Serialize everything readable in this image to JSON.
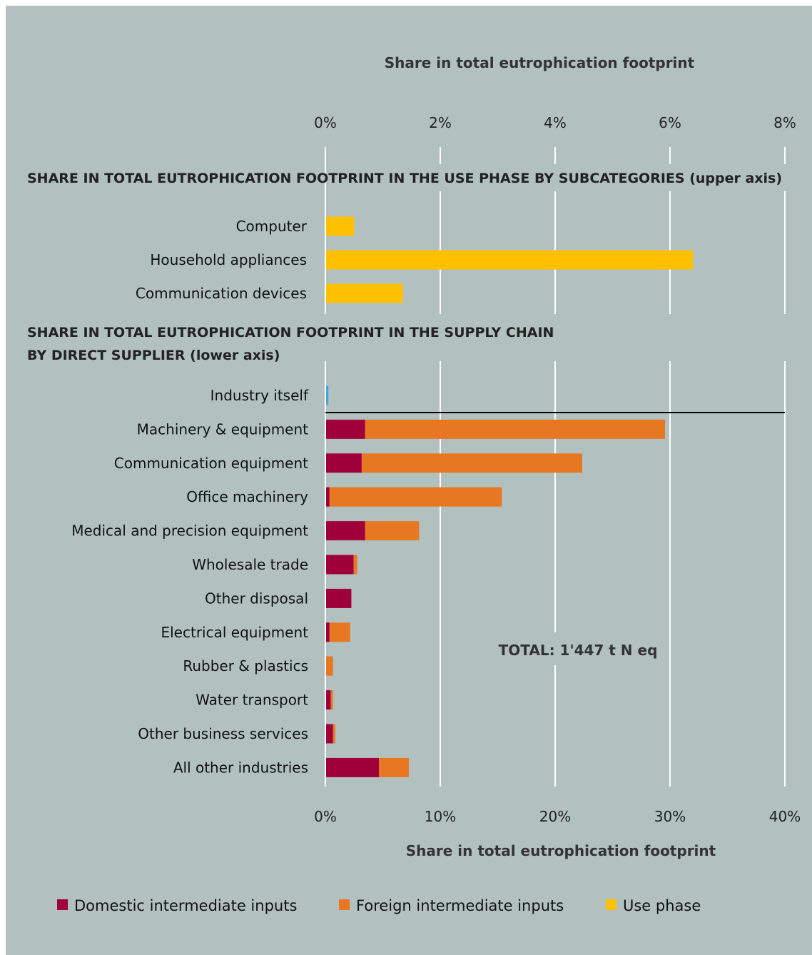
{
  "chart_data": [
    {
      "type": "bar",
      "orientation": "horizontal",
      "section_title": "SHARE IN TOTAL EUTROPHICATION FOOTPRINT IN THE USE PHASE BY SUBCATEGORIES (upper axis)",
      "xlabel": "Share in total eutrophication footprint",
      "xlim": [
        0,
        8
      ],
      "x_ticks": [
        "0%",
        "2%",
        "4%",
        "6%",
        "8%"
      ],
      "grid": true,
      "categories": [
        "Computer",
        "Household appliances",
        "Communication devices"
      ],
      "series": [
        {
          "name": "Use phase",
          "color": "#ffc000",
          "values": [
            0.5,
            6.4,
            1.35
          ]
        }
      ]
    },
    {
      "type": "bar",
      "orientation": "horizontal",
      "stacked": true,
      "section_title_lines": [
        "SHARE IN TOTAL EUTROPHICATION FOOTPRINT IN THE SUPPLY CHAIN",
        "BY DIRECT SUPPLIER (lower axis)"
      ],
      "xlabel": "Share in total eutrophication footprint",
      "xlim": [
        0,
        40
      ],
      "x_ticks": [
        "0%",
        "10%",
        "20%",
        "30%",
        "40%"
      ],
      "grid": true,
      "annotation": "TOTAL: 1'447 t N eq",
      "categories": [
        "Industry itself",
        "Machinery & equipment",
        "Communication equipment",
        "Office machinery",
        "Medical and precision equipment",
        "Wholesale trade",
        "Other disposal",
        "Electrical equipment",
        "Rubber & plastics",
        "Water transport",
        "Other business services",
        "All other industries"
      ],
      "industry_itself": {
        "color": "#4aa3d8",
        "value": 0.2
      },
      "series": [
        {
          "name": "Domestic intermediate inputs",
          "color": "#a0003a",
          "values": [
            0,
            3.4,
            3.1,
            0.3,
            3.4,
            2.4,
            2.2,
            0.3,
            0,
            0.4,
            0.6,
            4.6
          ]
        },
        {
          "name": "Foreign intermediate inputs",
          "color": "#e87722",
          "values": [
            0,
            26.1,
            19.2,
            15.0,
            4.7,
            0.3,
            0,
            1.8,
            0.6,
            0.2,
            0.2,
            2.6
          ]
        }
      ]
    }
  ],
  "legend": [
    {
      "label": "Domestic intermediate inputs",
      "color": "#a0003a"
    },
    {
      "label": "Foreign intermediate inputs",
      "color": "#e87722"
    },
    {
      "label": "Use phase",
      "color": "#ffc000"
    }
  ]
}
